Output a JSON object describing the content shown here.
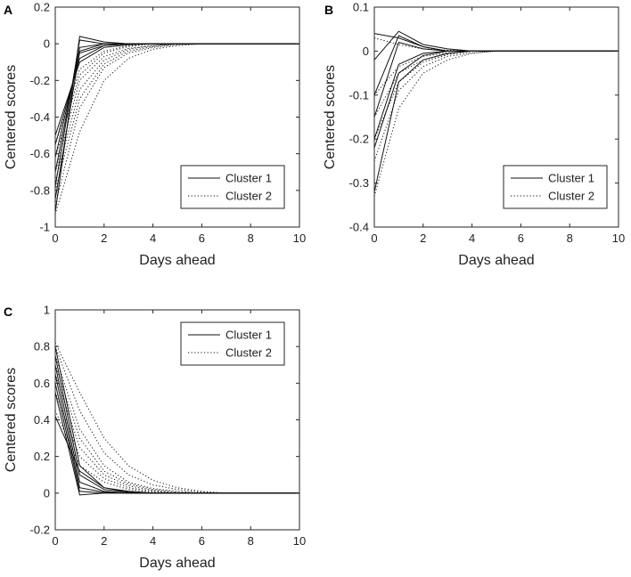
{
  "chart_data": [
    {
      "panel": "A",
      "type": "line",
      "xlabel": "Days ahead",
      "ylabel": "Centered scores",
      "xlim": [
        0,
        10
      ],
      "ylim": [
        -1,
        0.2
      ],
      "xticks": [
        0,
        2,
        4,
        6,
        8,
        10
      ],
      "yticks": [
        -1,
        -0.8,
        -0.6,
        -0.4,
        -0.2,
        0,
        0.2
      ],
      "ytick_labels": [
        "-1",
        "-0.8",
        "-0.6",
        "-0.4",
        "-0.2",
        "0",
        "0.2"
      ],
      "legend": [
        {
          "label": "Cluster 1",
          "style": "solid"
        },
        {
          "label": "Cluster 2",
          "style": "dotted"
        }
      ],
      "legend_position": "bottom-right",
      "x": [
        0,
        1,
        2,
        3,
        4,
        5,
        6,
        7,
        8,
        9,
        10
      ],
      "series": [
        {
          "name": "Cluster 1",
          "style": "solid",
          "values": [
            -0.92,
            0.04,
            0.01,
            0,
            0,
            0,
            0,
            0,
            0,
            0,
            0
          ]
        },
        {
          "name": "Cluster 1",
          "style": "solid",
          "values": [
            -0.78,
            0.02,
            0,
            0,
            0,
            0,
            0,
            0,
            0,
            0,
            0
          ]
        },
        {
          "name": "Cluster 1",
          "style": "solid",
          "values": [
            -0.7,
            -0.02,
            0,
            0,
            0,
            0,
            0,
            0,
            0,
            0,
            0
          ]
        },
        {
          "name": "Cluster 1",
          "style": "solid",
          "values": [
            -0.62,
            -0.05,
            -0.01,
            0,
            0,
            0,
            0,
            0,
            0,
            0,
            0
          ]
        },
        {
          "name": "Cluster 1",
          "style": "solid",
          "values": [
            -0.55,
            -0.08,
            -0.01,
            0,
            0,
            0,
            0,
            0,
            0,
            0,
            0
          ]
        },
        {
          "name": "Cluster 1",
          "style": "solid",
          "values": [
            -0.5,
            -0.1,
            -0.02,
            -0.005,
            0,
            0,
            0,
            0,
            0,
            0,
            0
          ]
        },
        {
          "name": "Cluster 1",
          "style": "solid",
          "values": [
            -0.85,
            -0.04,
            0,
            0,
            0,
            0,
            0,
            0,
            0,
            0,
            0
          ]
        },
        {
          "name": "Cluster 2",
          "style": "dotted",
          "values": [
            -0.93,
            -0.48,
            -0.2,
            -0.08,
            -0.03,
            -0.01,
            0,
            0,
            0,
            0,
            0
          ]
        },
        {
          "name": "Cluster 2",
          "style": "dotted",
          "values": [
            -0.88,
            -0.35,
            -0.13,
            -0.05,
            -0.02,
            -0.005,
            0,
            0,
            0,
            0,
            0
          ]
        },
        {
          "name": "Cluster 2",
          "style": "dotted",
          "values": [
            -0.8,
            -0.3,
            -0.11,
            -0.04,
            -0.015,
            0,
            0,
            0,
            0,
            0,
            0
          ]
        },
        {
          "name": "Cluster 2",
          "style": "dotted",
          "values": [
            -0.75,
            -0.25,
            -0.09,
            -0.03,
            -0.01,
            0,
            0,
            0,
            0,
            0,
            0
          ]
        },
        {
          "name": "Cluster 2",
          "style": "dotted",
          "values": [
            -0.7,
            -0.2,
            -0.07,
            -0.025,
            -0.01,
            0,
            0,
            0,
            0,
            0,
            0
          ]
        },
        {
          "name": "Cluster 2",
          "style": "dotted",
          "values": [
            -0.62,
            -0.17,
            -0.05,
            -0.015,
            0,
            0,
            0,
            0,
            0,
            0,
            0
          ]
        },
        {
          "name": "Cluster 2",
          "style": "dotted",
          "values": [
            -0.55,
            -0.14,
            -0.04,
            -0.01,
            0,
            0,
            0,
            0,
            0,
            0,
            0
          ]
        }
      ]
    },
    {
      "panel": "B",
      "type": "line",
      "xlabel": "Days ahead",
      "ylabel": "Centered scores",
      "xlim": [
        0,
        10
      ],
      "ylim": [
        -0.4,
        0.1
      ],
      "xticks": [
        0,
        2,
        4,
        6,
        8,
        10
      ],
      "yticks": [
        -0.4,
        -0.3,
        -0.2,
        -0.1,
        0,
        0.1
      ],
      "ytick_labels": [
        "-0.4",
        "-0.3",
        "-0.2",
        "-0.1",
        "0",
        "0.1"
      ],
      "legend": [
        {
          "label": "Cluster 1",
          "style": "solid"
        },
        {
          "label": "Cluster 2",
          "style": "dotted"
        }
      ],
      "legend_position": "bottom-right",
      "x": [
        0,
        1,
        2,
        3,
        4,
        5,
        6,
        7,
        8,
        9,
        10
      ],
      "series": [
        {
          "name": "Cluster 1",
          "style": "solid",
          "values": [
            0.04,
            0.03,
            0.01,
            0,
            0,
            0,
            0,
            0,
            0,
            0,
            0
          ]
        },
        {
          "name": "Cluster 1",
          "style": "solid",
          "values": [
            -0.02,
            0.045,
            0.015,
            0.005,
            0,
            0,
            0,
            0,
            0,
            0,
            0
          ]
        },
        {
          "name": "Cluster 1",
          "style": "solid",
          "values": [
            -0.1,
            0.035,
            0.01,
            0,
            0,
            0,
            0,
            0,
            0,
            0,
            0
          ]
        },
        {
          "name": "Cluster 1",
          "style": "solid",
          "values": [
            -0.15,
            0.02,
            0.005,
            0,
            0,
            0,
            0,
            0,
            0,
            0,
            0
          ]
        },
        {
          "name": "Cluster 1",
          "style": "solid",
          "values": [
            -0.2,
            -0.03,
            -0.005,
            0,
            0,
            0,
            0,
            0,
            0,
            0,
            0
          ]
        },
        {
          "name": "Cluster 1",
          "style": "solid",
          "values": [
            -0.22,
            -0.05,
            -0.01,
            0,
            0,
            0,
            0,
            0,
            0,
            0,
            0
          ]
        },
        {
          "name": "Cluster 1",
          "style": "solid",
          "values": [
            -0.32,
            -0.07,
            -0.02,
            -0.005,
            0,
            0,
            0,
            0,
            0,
            0,
            0
          ]
        },
        {
          "name": "Cluster 2",
          "style": "dotted",
          "values": [
            -0.33,
            -0.13,
            -0.05,
            -0.02,
            -0.005,
            0,
            0,
            0,
            0,
            0,
            0
          ]
        },
        {
          "name": "Cluster 2",
          "style": "dotted",
          "values": [
            -0.25,
            -0.09,
            -0.035,
            -0.012,
            -0.004,
            0,
            0,
            0,
            0,
            0,
            0
          ]
        },
        {
          "name": "Cluster 2",
          "style": "dotted",
          "values": [
            -0.2,
            -0.07,
            -0.025,
            -0.008,
            0,
            0,
            0,
            0,
            0,
            0,
            0
          ]
        },
        {
          "name": "Cluster 2",
          "style": "dotted",
          "values": [
            -0.15,
            -0.05,
            -0.02,
            -0.006,
            0,
            0,
            0,
            0,
            0,
            0,
            0
          ]
        },
        {
          "name": "Cluster 2",
          "style": "dotted",
          "values": [
            -0.1,
            -0.035,
            -0.012,
            -0.004,
            0,
            0,
            0,
            0,
            0,
            0,
            0
          ]
        },
        {
          "name": "Cluster 2",
          "style": "dotted",
          "values": [
            0.03,
            0.015,
            0.005,
            0.002,
            0,
            0,
            0,
            0,
            0,
            0,
            0
          ]
        }
      ]
    },
    {
      "panel": "C",
      "type": "line",
      "xlabel": "Days ahead",
      "ylabel": "Centered scores",
      "xlim": [
        0,
        10
      ],
      "ylim": [
        -0.2,
        1
      ],
      "xticks": [
        0,
        2,
        4,
        6,
        8,
        10
      ],
      "yticks": [
        -0.2,
        0,
        0.2,
        0.4,
        0.6,
        0.8,
        1
      ],
      "ytick_labels": [
        "-0.2",
        "0",
        "0.2",
        "0.4",
        "0.6",
        "0.8",
        "1"
      ],
      "legend": [
        {
          "label": "Cluster 1",
          "style": "solid"
        },
        {
          "label": "Cluster 2",
          "style": "dotted"
        }
      ],
      "legend_position": "top-right",
      "x": [
        0,
        1,
        2,
        3,
        4,
        5,
        6,
        7,
        8,
        9,
        10
      ],
      "series": [
        {
          "name": "Cluster 1",
          "style": "solid",
          "values": [
            0.75,
            0.1,
            0.02,
            0.005,
            0,
            0,
            0,
            0,
            0,
            0,
            0
          ]
        },
        {
          "name": "Cluster 1",
          "style": "solid",
          "values": [
            0.7,
            0.06,
            0.01,
            0,
            0,
            0,
            0,
            0,
            0,
            0,
            0
          ]
        },
        {
          "name": "Cluster 1",
          "style": "solid",
          "values": [
            0.65,
            0.03,
            0.005,
            0,
            0,
            0,
            0,
            0,
            0,
            0,
            0
          ]
        },
        {
          "name": "Cluster 1",
          "style": "solid",
          "values": [
            0.6,
            0.01,
            0,
            0,
            0,
            0,
            0,
            0,
            0,
            0,
            0
          ]
        },
        {
          "name": "Cluster 1",
          "style": "solid",
          "values": [
            0.55,
            -0.01,
            0,
            0,
            0,
            0,
            0,
            0,
            0,
            0,
            0
          ]
        },
        {
          "name": "Cluster 1",
          "style": "solid",
          "values": [
            0.42,
            0.12,
            0.03,
            0.01,
            0,
            0,
            0,
            0,
            0,
            0,
            0
          ]
        },
        {
          "name": "Cluster 1",
          "style": "solid",
          "values": [
            0.8,
            0.15,
            0.03,
            0.005,
            0,
            0,
            0,
            0,
            0,
            0,
            0
          ]
        },
        {
          "name": "Cluster 2",
          "style": "dotted",
          "values": [
            0.82,
            0.55,
            0.3,
            0.15,
            0.07,
            0.03,
            0.01,
            0,
            0,
            0,
            0
          ]
        },
        {
          "name": "Cluster 2",
          "style": "dotted",
          "values": [
            0.8,
            0.45,
            0.22,
            0.1,
            0.045,
            0.02,
            0.005,
            0,
            0,
            0,
            0
          ]
        },
        {
          "name": "Cluster 2",
          "style": "dotted",
          "values": [
            0.75,
            0.35,
            0.15,
            0.06,
            0.025,
            0.01,
            0,
            0,
            0,
            0,
            0
          ]
        },
        {
          "name": "Cluster 2",
          "style": "dotted",
          "values": [
            0.7,
            0.3,
            0.12,
            0.05,
            0.02,
            0.005,
            0,
            0,
            0,
            0,
            0
          ]
        },
        {
          "name": "Cluster 2",
          "style": "dotted",
          "values": [
            0.65,
            0.25,
            0.1,
            0.04,
            0.015,
            0,
            0,
            0,
            0,
            0,
            0
          ]
        },
        {
          "name": "Cluster 2",
          "style": "dotted",
          "values": [
            0.55,
            0.2,
            0.08,
            0.03,
            0.01,
            0,
            0,
            0,
            0,
            0,
            0
          ]
        },
        {
          "name": "Cluster 2",
          "style": "dotted",
          "values": [
            0.45,
            0.15,
            0.06,
            0.02,
            0.005,
            0,
            0,
            0,
            0,
            0,
            0
          ]
        }
      ]
    }
  ]
}
